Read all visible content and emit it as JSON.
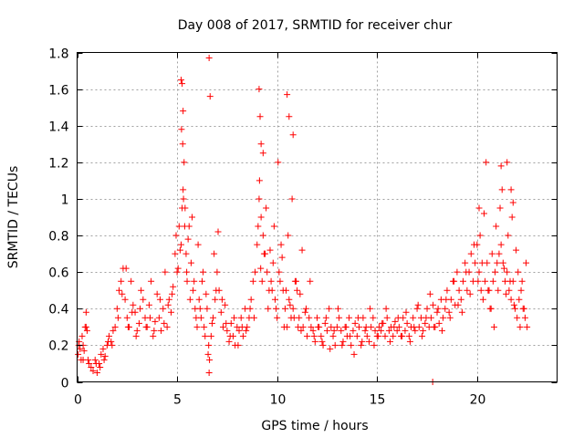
{
  "chart_data": {
    "type": "scatter",
    "title": "Day 008 of 2017, SRMTID for receiver chur",
    "xlabel": "GPS time / hours",
    "ylabel": "SRMTID / TECUs",
    "xlim": [
      0,
      24
    ],
    "ylim": [
      0,
      1.8
    ],
    "xticks": [
      0,
      5,
      10,
      15,
      20
    ],
    "xtick_labels": [
      "0",
      "5",
      "10",
      "15",
      "20"
    ],
    "yticks": [
      0,
      0.2,
      0.4,
      0.6,
      0.8,
      1,
      1.2,
      1.4,
      1.6,
      1.8
    ],
    "ytick_labels": [
      "0",
      "0.2",
      "0.4",
      "0.6",
      "0.8",
      "1",
      "1.2",
      "1.4",
      "1.6",
      "1.8"
    ],
    "grid": true,
    "marker": "+",
    "marker_color": "#ff0000",
    "series": [
      {
        "name": "SRMTID",
        "x": [
          0.05,
          0.1,
          0.15,
          0.2,
          0.25,
          0.3,
          0.35,
          0.4,
          0.45,
          0.5,
          0.55,
          0.6,
          0.7,
          0.8,
          0.9,
          1.0,
          1.1,
          1.2,
          1.3,
          1.4,
          1.5,
          1.6,
          1.7,
          1.8,
          1.9,
          2.0,
          2.1,
          2.2,
          2.3,
          2.4,
          2.5,
          2.6,
          2.7,
          2.8,
          2.9,
          3.0,
          3.1,
          3.2,
          3.3,
          3.4,
          3.5,
          3.6,
          3.7,
          3.8,
          3.9,
          4.0,
          4.1,
          4.2,
          4.3,
          4.4,
          4.5,
          4.6,
          4.7,
          4.8,
          4.9,
          5.0,
          5.1,
          5.2,
          5.3,
          5.35,
          5.4,
          5.45,
          5.5,
          5.6,
          5.7,
          5.8,
          5.9,
          6.0,
          6.1,
          6.2,
          6.3,
          6.4,
          6.5,
          6.55,
          6.6,
          6.7,
          6.8,
          6.9,
          7.0,
          7.1,
          7.2,
          7.3,
          7.4,
          7.5,
          7.6,
          7.7,
          7.8,
          7.9,
          8.0,
          8.1,
          8.2,
          8.3,
          8.4,
          8.5,
          8.6,
          8.7,
          8.8,
          8.9,
          9.0,
          9.1,
          9.2,
          9.3,
          9.4,
          9.5,
          9.6,
          9.7,
          9.8,
          9.9,
          10.0,
          10.1,
          10.2,
          10.3,
          10.4,
          10.5,
          10.6,
          10.7,
          10.8,
          10.9,
          11.0,
          11.1,
          11.2,
          11.3,
          11.4,
          11.5,
          11.6,
          11.7,
          11.8,
          11.9,
          12.0,
          12.1,
          12.2,
          12.3,
          12.4,
          12.5,
          12.6,
          12.7,
          12.8,
          12.9,
          13.0,
          13.1,
          13.2,
          13.3,
          13.4,
          13.5,
          13.6,
          13.7,
          13.8,
          13.9,
          14.0,
          14.1,
          14.2,
          14.3,
          14.4,
          14.5,
          14.6,
          14.7,
          14.8,
          14.9,
          15.0,
          15.1,
          15.2,
          15.3,
          15.4,
          15.5,
          15.6,
          15.7,
          15.8,
          15.9,
          16.0,
          16.1,
          16.2,
          16.3,
          16.4,
          16.5,
          16.6,
          16.7,
          16.8,
          16.9,
          17.0,
          17.1,
          17.2,
          17.3,
          17.4,
          17.5,
          17.6,
          17.7,
          17.8,
          17.9,
          18.0,
          18.1,
          18.2,
          18.3,
          18.4,
          18.5,
          18.6,
          18.7,
          18.8,
          18.9,
          19.0,
          19.1,
          19.2,
          19.3,
          19.4,
          19.5,
          19.6,
          19.7,
          19.8,
          19.9,
          20.0,
          20.1,
          20.2,
          20.3,
          20.4,
          20.5,
          20.6,
          20.7,
          20.8,
          20.9,
          21.0,
          21.1,
          21.2,
          21.3,
          21.4,
          21.5,
          21.6,
          21.7,
          21.8,
          21.9,
          22.0,
          22.1,
          22.2,
          22.3,
          22.4,
          22.5,
          0.08,
          0.3,
          0.45,
          0.95,
          1.15,
          1.35,
          1.55,
          1.75,
          2.05,
          2.25,
          2.45,
          2.55,
          2.75,
          2.95,
          3.15,
          3.45,
          3.65,
          3.85,
          4.15,
          4.35,
          4.55,
          4.75,
          4.95,
          5.05,
          5.15,
          5.25,
          5.28,
          5.32,
          5.38,
          5.48,
          5.55,
          5.65,
          5.75,
          5.85,
          5.95,
          6.05,
          6.15,
          6.25,
          6.35,
          6.45,
          6.58,
          6.62,
          6.75,
          6.85,
          6.95,
          7.05,
          7.25,
          7.45,
          7.65,
          7.85,
          8.05,
          8.25,
          8.45,
          8.65,
          8.85,
          9.05,
          9.12,
          9.18,
          9.25,
          9.35,
          9.45,
          9.55,
          9.65,
          9.75,
          9.85,
          9.95,
          10.05,
          10.15,
          10.25,
          10.35,
          10.45,
          10.55,
          10.65,
          10.75,
          10.85,
          10.95,
          11.05,
          11.15,
          11.25,
          11.45,
          11.65,
          11.85,
          12.05,
          12.25,
          12.45,
          12.65,
          12.85,
          13.05,
          13.25,
          13.45,
          13.65,
          13.85,
          14.05,
          14.25,
          14.45,
          14.65,
          14.85,
          15.05,
          15.25,
          15.45,
          15.65,
          15.85,
          16.05,
          16.25,
          16.45,
          16.65,
          16.85,
          17.05,
          17.25,
          17.45,
          17.65,
          17.78,
          17.85,
          18.05,
          18.25,
          18.45,
          18.65,
          18.85,
          19.05,
          19.25,
          19.45,
          19.65,
          19.85,
          20.05,
          20.15,
          20.25,
          20.35,
          20.45,
          20.55,
          20.65,
          20.75,
          20.85,
          20.95,
          21.05,
          21.15,
          21.25,
          21.35,
          21.45,
          21.55,
          21.65,
          21.75,
          21.85,
          21.95,
          22.05,
          22.15,
          22.25,
          22.35,
          22.45,
          5.2,
          5.25,
          5.3,
          5.22,
          9.1,
          9.15,
          9.2,
          9.3,
          10.5,
          10.6,
          10.8,
          6.6,
          6.65,
          21.5,
          21.7,
          21.8,
          21.2,
          20.1
        ],
        "y": [
          0.15,
          0.22,
          0.18,
          0.12,
          0.25,
          0.2,
          0.17,
          0.3,
          0.38,
          0.28,
          0.12,
          0.1,
          0.08,
          0.06,
          0.12,
          0.05,
          0.1,
          0.15,
          0.18,
          0.14,
          0.2,
          0.25,
          0.22,
          0.28,
          0.3,
          0.4,
          0.5,
          0.55,
          0.62,
          0.45,
          0.35,
          0.3,
          0.55,
          0.42,
          0.38,
          0.28,
          0.32,
          0.5,
          0.45,
          0.35,
          0.3,
          0.42,
          0.55,
          0.25,
          0.33,
          0.48,
          0.35,
          0.28,
          0.4,
          0.6,
          0.3,
          0.45,
          0.38,
          0.52,
          0.7,
          0.6,
          0.85,
          0.75,
          1.05,
          1.2,
          0.95,
          0.7,
          0.55,
          0.85,
          0.65,
          0.5,
          0.4,
          0.3,
          0.45,
          0.35,
          0.6,
          0.25,
          0.4,
          0.15,
          0.05,
          0.25,
          0.35,
          0.45,
          0.6,
          0.5,
          0.38,
          0.3,
          0.42,
          0.28,
          0.22,
          0.32,
          0.25,
          0.2,
          0.3,
          0.28,
          0.35,
          0.25,
          0.4,
          0.3,
          0.35,
          0.45,
          0.55,
          0.6,
          0.75,
          1.0,
          0.9,
          0.8,
          0.7,
          0.6,
          0.5,
          0.55,
          0.65,
          0.45,
          0.35,
          0.6,
          0.75,
          0.5,
          0.4,
          0.3,
          0.45,
          0.35,
          0.4,
          0.55,
          0.5,
          0.35,
          0.28,
          0.3,
          0.38,
          0.25,
          0.35,
          0.3,
          0.28,
          0.22,
          0.35,
          0.3,
          0.25,
          0.2,
          0.32,
          0.28,
          0.4,
          0.3,
          0.25,
          0.2,
          0.3,
          0.35,
          0.28,
          0.22,
          0.3,
          0.25,
          0.35,
          0.2,
          0.28,
          0.32,
          0.25,
          0.3,
          0.2,
          0.35,
          0.28,
          0.25,
          0.22,
          0.3,
          0.35,
          0.28,
          0.25,
          0.3,
          0.28,
          0.32,
          0.25,
          0.35,
          0.28,
          0.3,
          0.25,
          0.33,
          0.28,
          0.3,
          0.25,
          0.35,
          0.28,
          0.32,
          0.25,
          0.3,
          0.35,
          0.28,
          0.4,
          0.3,
          0.35,
          0.28,
          0.32,
          0.4,
          0.3,
          0.35,
          0.42,
          0.3,
          0.38,
          0.32,
          0.45,
          0.35,
          0.4,
          0.5,
          0.38,
          0.45,
          0.55,
          0.42,
          0.6,
          0.5,
          0.45,
          0.55,
          0.65,
          0.5,
          0.6,
          0.7,
          0.55,
          0.65,
          0.75,
          0.6,
          0.5,
          0.45,
          0.55,
          0.65,
          0.5,
          0.4,
          0.55,
          0.6,
          0.65,
          0.7,
          0.75,
          0.65,
          0.55,
          0.6,
          0.5,
          0.45,
          0.55,
          0.4,
          0.35,
          0.45,
          0.5,
          0.4,
          0.35,
          0.3,
          0.2,
          0.12,
          0.3,
          0.1,
          0.08,
          0.12,
          0.22,
          0.2,
          0.35,
          0.48,
          0.62,
          0.3,
          0.38,
          0.25,
          0.4,
          0.3,
          0.35,
          0.28,
          0.45,
          0.32,
          0.42,
          0.48,
          0.8,
          0.62,
          0.72,
          0.95,
          1.3,
          1.0,
          0.85,
          0.6,
          0.78,
          0.45,
          0.9,
          0.55,
          0.35,
          0.75,
          0.4,
          0.55,
          0.3,
          0.48,
          0.2,
          0.12,
          0.32,
          0.7,
          0.5,
          0.82,
          0.45,
          0.32,
          0.25,
          0.35,
          0.2,
          0.3,
          0.28,
          0.4,
          0.35,
          0.85,
          1.1,
          0.62,
          0.55,
          0.7,
          0.95,
          0.4,
          0.72,
          0.5,
          0.85,
          0.4,
          1.2,
          0.55,
          0.68,
          0.3,
          0.5,
          0.8,
          0.42,
          1.0,
          0.35,
          0.55,
          0.3,
          0.48,
          0.72,
          0.4,
          0.55,
          0.25,
          0.3,
          0.22,
          0.35,
          0.18,
          0.28,
          0.4,
          0.2,
          0.3,
          0.25,
          0.15,
          0.35,
          0.22,
          0.3,
          0.4,
          0.2,
          0.25,
          0.32,
          0.4,
          0.22,
          0.3,
          0.35,
          0.25,
          0.38,
          0.22,
          0.3,
          0.42,
          0.25,
          0.35,
          0.48,
          0.0,
          0.3,
          0.4,
          0.28,
          0.45,
          0.35,
          0.55,
          0.42,
          0.38,
          0.6,
          0.48,
          0.75,
          0.55,
          0.8,
          0.65,
          0.92,
          1.2,
          0.5,
          0.4,
          0.7,
          0.3,
          0.85,
          0.5,
          0.95,
          1.05,
          0.62,
          0.48,
          0.8,
          0.55,
          0.9,
          0.42,
          0.72,
          0.6,
          0.3,
          0.55,
          0.4,
          0.65,
          1.65,
          1.63,
          1.48,
          1.38,
          1.6,
          1.45,
          1.3,
          1.25,
          1.57,
          1.45,
          1.35,
          1.77,
          1.56,
          1.2,
          1.05,
          0.98,
          1.18,
          0.95
        ]
      }
    ]
  }
}
